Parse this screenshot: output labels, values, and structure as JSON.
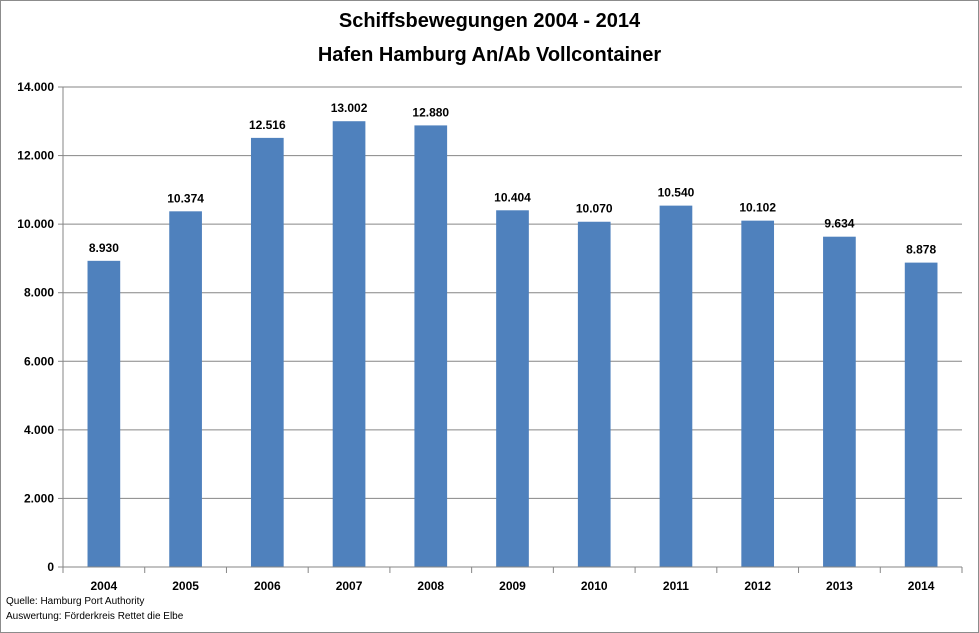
{
  "chart_data": {
    "type": "bar",
    "title": "Schiffsbewegungen 2004 - 2014",
    "subtitle": "Hafen Hamburg An/Ab Vollcontainer",
    "categories": [
      "2004",
      "2005",
      "2006",
      "2007",
      "2008",
      "2009",
      "2010",
      "2011",
      "2012",
      "2013",
      "2014"
    ],
    "values": [
      8930,
      10374,
      12516,
      13002,
      12880,
      10404,
      10070,
      10540,
      10102,
      9634,
      8878
    ],
    "value_labels": [
      "8.930",
      "10.374",
      "12.516",
      "13.002",
      "12.880",
      "10.404",
      "10.070",
      "10.540",
      "10.102",
      "9.634",
      "8.878"
    ],
    "yticks": [
      0,
      2000,
      4000,
      6000,
      8000,
      10000,
      12000,
      14000
    ],
    "ytick_labels": [
      "0",
      "2.000",
      "4.000",
      "6.000",
      "8.000",
      "10.000",
      "12.000",
      "14.000"
    ],
    "ylim": [
      0,
      14000
    ],
    "grid": true,
    "legend": "none",
    "bar_color": "#4f81bd"
  },
  "source": {
    "line1": "Quelle: Hamburg Port Authority",
    "line2": "Auswertung: Förderkreis Rettet die Elbe"
  }
}
